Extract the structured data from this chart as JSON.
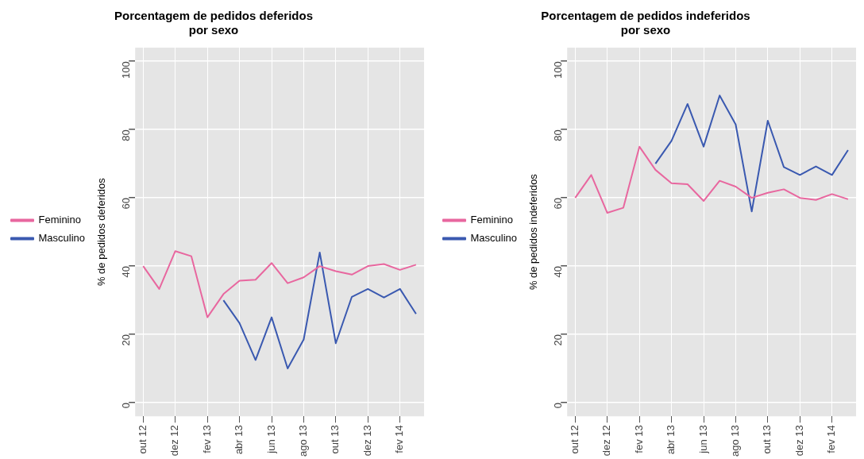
{
  "chart_data": [
    {
      "type": "line",
      "title": "Porcentagem de pedidos deferidos\npor sexo",
      "ylabel": "% de pedidos deferidos",
      "categories": [
        "out 12",
        null,
        "dez 12",
        null,
        "fev 13",
        null,
        "abr 13",
        null,
        "jun 13",
        null,
        "ago 13",
        null,
        "out 13",
        null,
        "dez 13",
        null,
        "fev 14",
        null
      ],
      "series": [
        {
          "name": "Feminino",
          "color": "#e8679f",
          "values": [
            40,
            33.3,
            44.4,
            42.9,
            25,
            31.8,
            35.7,
            36,
            40.9,
            35,
            36.7,
            40,
            38.5,
            37.5,
            40,
            40.6,
            38.9,
            40.4
          ]
        },
        {
          "name": "Masculino",
          "color": "#3a59b0",
          "values": [
            null,
            null,
            null,
            null,
            null,
            30,
            23.3,
            12.5,
            25,
            10,
            18.5,
            44,
            17.4,
            31,
            33.3,
            30.8,
            33.3,
            26
          ]
        }
      ],
      "ylim": [
        -4,
        104
      ],
      "yticks": [
        0,
        20,
        40,
        60,
        80,
        100
      ],
      "grid": true,
      "legend": "left",
      "marker": "none",
      "line_style": "solid"
    },
    {
      "type": "line",
      "title": "Porcentagem de pedidos indeferidos\npor sexo",
      "ylabel": "% de pedidos indeferidos",
      "categories": [
        "out 12",
        null,
        "dez 12",
        null,
        "fev 13",
        null,
        "abr 13",
        null,
        "jun 13",
        null,
        "ago 13",
        null,
        "out 13",
        null,
        "dez 13",
        null,
        "fev 14",
        null
      ],
      "series": [
        {
          "name": "Feminino",
          "color": "#e8679f",
          "values": [
            60,
            66.7,
            55.6,
            57.1,
            75,
            68.2,
            64.3,
            64,
            59.1,
            65,
            63.3,
            60,
            61.5,
            62.5,
            60,
            59.4,
            61.1,
            59.6
          ]
        },
        {
          "name": "Masculino",
          "color": "#3a59b0",
          "values": [
            null,
            null,
            null,
            null,
            null,
            70,
            76.7,
            87.5,
            75,
            90,
            81.5,
            56,
            82.6,
            69,
            66.7,
            69.2,
            66.7,
            74
          ]
        }
      ],
      "ylim": [
        -4,
        104
      ],
      "yticks": [
        0,
        20,
        40,
        60,
        80,
        100
      ],
      "grid": true,
      "legend": "left",
      "marker": "none",
      "line_style": "solid"
    }
  ]
}
